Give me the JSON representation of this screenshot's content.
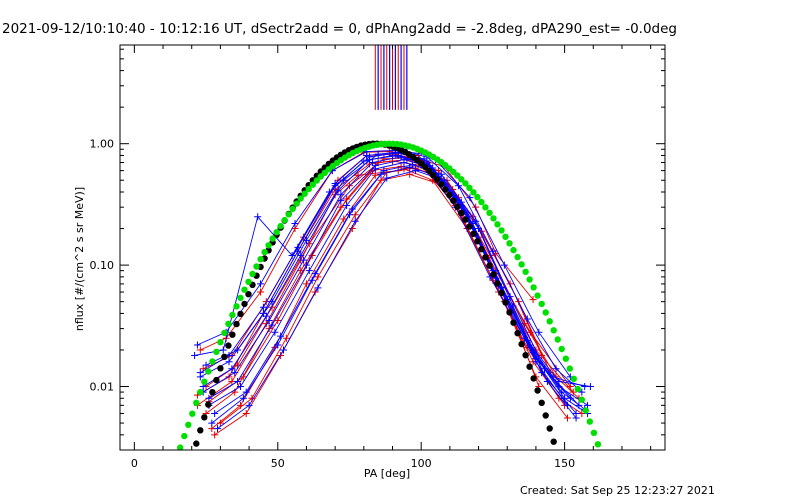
{
  "chart_data": {
    "type": "line",
    "title": "2021-09-12/10:10:40 - 10:12:16 UT, dSectr2add = 0, dPhAng2add = -2.8deg, dPA290_est= -0.0deg",
    "xlabel": "PA [deg]",
    "ylabel": "nflux [#/(cm^2 s sr MeV)]",
    "xlim": [
      -5,
      185
    ],
    "ylim": [
      0.003,
      6.5
    ],
    "yscale": "log",
    "xticks": [
      0,
      50,
      100,
      150
    ],
    "xtick_labels": [
      "0",
      "50",
      "100",
      "150"
    ],
    "yticks": [
      0.01,
      0.1,
      1.0
    ],
    "ytick_labels": [
      "0.01",
      "0.10",
      "1.00"
    ],
    "grid": false,
    "legend": "none",
    "colors": {
      "red_traces": "#e00000",
      "blue_traces": "#0000ff",
      "fit_black": "#000000",
      "fit_green": "#00e000"
    },
    "series": [
      {
        "color": "red",
        "x": [
          22,
          33,
          45,
          57,
          70,
          82,
          90,
          100,
          112,
          125,
          137,
          148,
          156
        ],
        "y": [
          0.0085,
          0.012,
          0.04,
          0.13,
          0.42,
          0.68,
          0.72,
          0.66,
          0.31,
          0.075,
          0.021,
          0.008,
          0.006
        ]
      },
      {
        "color": "red",
        "x": [
          25,
          35,
          47,
          58,
          72,
          83,
          93,
          103,
          114,
          127,
          139,
          150
        ],
        "y": [
          0.006,
          0.009,
          0.03,
          0.09,
          0.3,
          0.6,
          0.65,
          0.58,
          0.26,
          0.06,
          0.016,
          0.007
        ]
      },
      {
        "color": "red",
        "x": [
          24,
          34,
          46,
          59,
          71,
          81,
          91,
          101,
          113,
          126,
          138,
          152
        ],
        "y": [
          0.014,
          0.018,
          0.05,
          0.17,
          0.5,
          0.8,
          0.82,
          0.72,
          0.36,
          0.09,
          0.028,
          0.01
        ]
      },
      {
        "color": "red",
        "x": [
          27,
          37,
          49,
          60,
          73,
          84,
          94,
          104,
          116,
          129,
          140,
          151
        ],
        "y": [
          0.0045,
          0.007,
          0.021,
          0.07,
          0.24,
          0.55,
          0.62,
          0.5,
          0.2,
          0.05,
          0.012,
          0.0055
        ]
      },
      {
        "color": "red",
        "x": [
          23,
          32,
          44,
          56,
          69,
          80,
          89,
          99,
          111,
          124,
          136,
          147,
          155
        ],
        "y": [
          0.02,
          0.025,
          0.06,
          0.2,
          0.6,
          0.85,
          0.86,
          0.8,
          0.42,
          0.12,
          0.033,
          0.012,
          0.008
        ]
      },
      {
        "color": "red",
        "x": [
          26,
          38,
          50,
          62,
          74,
          85,
          95,
          106,
          118,
          131,
          142
        ],
        "y": [
          0.0075,
          0.012,
          0.035,
          0.12,
          0.35,
          0.7,
          0.74,
          0.6,
          0.25,
          0.07,
          0.018
        ]
      },
      {
        "color": "red",
        "x": [
          28,
          39,
          51,
          63,
          76,
          86,
          96,
          107,
          120,
          131,
          141
        ],
        "y": [
          0.004,
          0.006,
          0.018,
          0.06,
          0.2,
          0.5,
          0.56,
          0.46,
          0.17,
          0.042,
          0.01
        ]
      },
      {
        "color": "red",
        "x": [
          25,
          36,
          48,
          61,
          75,
          87,
          97,
          108,
          119,
          126,
          139
        ],
        "y": [
          0.01,
          0.015,
          0.045,
          0.15,
          0.45,
          0.75,
          0.77,
          0.65,
          0.3,
          0.125,
          0.052
        ]
      },
      {
        "color": "red",
        "x": [
          30,
          41,
          53,
          64,
          77,
          88,
          98,
          109,
          121,
          134,
          145
        ],
        "y": [
          0.005,
          0.008,
          0.025,
          0.08,
          0.26,
          0.58,
          0.63,
          0.5,
          0.19,
          0.05,
          0.013
        ]
      },
      {
        "color": "red",
        "x": [
          22,
          34,
          46,
          58,
          70,
          78,
          92,
          102,
          115,
          128,
          140,
          153
        ],
        "y": [
          0.007,
          0.011,
          0.033,
          0.11,
          0.38,
          0.55,
          0.6,
          0.7,
          0.28,
          0.066,
          0.02,
          0.009
        ]
      },
      {
        "color": "blue",
        "x": [
          21,
          31,
          43,
          55,
          68,
          80,
          90,
          100,
          112,
          124,
          136,
          146,
          157
        ],
        "y": [
          0.018,
          0.02,
          0.25,
          0.12,
          0.4,
          0.72,
          0.8,
          0.7,
          0.3,
          0.08,
          0.025,
          0.012,
          0.01
        ]
      },
      {
        "color": "blue",
        "x": [
          23,
          33,
          45,
          57,
          70,
          82,
          92,
          102,
          114,
          126,
          138,
          148,
          158
        ],
        "y": [
          0.012,
          0.016,
          0.04,
          0.13,
          0.45,
          0.78,
          0.84,
          0.72,
          0.33,
          0.085,
          0.022,
          0.01,
          0.007
        ]
      },
      {
        "color": "blue",
        "x": [
          24,
          35,
          47,
          59,
          72,
          83,
          93,
          103,
          115,
          127,
          139,
          150,
          158
        ],
        "y": [
          0.009,
          0.013,
          0.035,
          0.11,
          0.38,
          0.7,
          0.78,
          0.66,
          0.29,
          0.07,
          0.019,
          0.008,
          0.006
        ]
      },
      {
        "color": "blue",
        "x": [
          26,
          37,
          49,
          61,
          74,
          84,
          94,
          104,
          116,
          128,
          140,
          151
        ],
        "y": [
          0.007,
          0.01,
          0.028,
          0.09,
          0.31,
          0.62,
          0.7,
          0.6,
          0.25,
          0.06,
          0.016,
          0.007
        ]
      },
      {
        "color": "blue",
        "x": [
          25,
          36,
          48,
          60,
          73,
          85,
          95,
          105,
          117,
          129,
          141,
          152
        ],
        "y": [
          0.015,
          0.02,
          0.05,
          0.16,
          0.5,
          0.82,
          0.86,
          0.74,
          0.36,
          0.1,
          0.028,
          0.012
        ]
      },
      {
        "color": "blue",
        "x": [
          27,
          38,
          50,
          62,
          75,
          86,
          96,
          106,
          118,
          130,
          142,
          154
        ],
        "y": [
          0.005,
          0.008,
          0.022,
          0.075,
          0.26,
          0.56,
          0.64,
          0.54,
          0.22,
          0.052,
          0.013,
          0.006
        ]
      },
      {
        "color": "blue",
        "x": [
          22,
          32,
          44,
          56,
          69,
          81,
          91,
          101,
          113,
          125,
          137,
          147,
          156
        ],
        "y": [
          0.022,
          0.028,
          0.07,
          0.22,
          0.6,
          0.86,
          0.88,
          0.82,
          0.45,
          0.13,
          0.036,
          0.014,
          0.009
        ]
      },
      {
        "color": "blue",
        "x": [
          28,
          39,
          51,
          63,
          76,
          87,
          97,
          107,
          119,
          131,
          143,
          155
        ],
        "y": [
          0.006,
          0.009,
          0.026,
          0.085,
          0.29,
          0.6,
          0.67,
          0.56,
          0.23,
          0.055,
          0.014,
          0.007
        ]
      },
      {
        "color": "blue",
        "x": [
          24,
          34,
          46,
          58,
          71,
          82,
          92,
          102,
          114,
          126,
          138,
          149,
          157
        ],
        "y": [
          0.01,
          0.014,
          0.038,
          0.12,
          0.41,
          0.74,
          0.8,
          0.69,
          0.31,
          0.078,
          0.021,
          0.009,
          0.0065
        ]
      },
      {
        "color": "blue",
        "x": [
          29,
          40,
          52,
          64,
          77,
          88,
          98,
          108,
          120,
          132,
          144,
          154
        ],
        "y": [
          0.0045,
          0.007,
          0.02,
          0.065,
          0.23,
          0.52,
          0.6,
          0.5,
          0.2,
          0.046,
          0.011,
          0.0055
        ]
      },
      {
        "color": "blue",
        "x": [
          23,
          33,
          45,
          57,
          70,
          81,
          91,
          101,
          113,
          125,
          137,
          148,
          159
        ],
        "y": [
          0.013,
          0.018,
          0.045,
          0.14,
          0.47,
          0.8,
          0.85,
          0.75,
          0.34,
          0.09,
          0.024,
          0.011,
          0.01
        ]
      },
      {
        "color": "blue",
        "x": [
          26,
          36,
          48,
          60,
          72,
          84,
          94,
          104,
          116,
          128,
          140,
          152
        ],
        "y": [
          0.008,
          0.011,
          0.032,
          0.1,
          0.34,
          0.66,
          0.74,
          0.63,
          0.27,
          0.065,
          0.017,
          0.008
        ]
      }
    ],
    "fits": [
      {
        "name": "",
        "color": "black",
        "center": 84,
        "sigma": 18.5,
        "peak": 1.0
      },
      {
        "name": "",
        "color": "green",
        "center": 89,
        "sigma": 21.5,
        "peak": 1.0
      }
    ],
    "top_markers": {
      "red_x": [
        84,
        86,
        88,
        90,
        92,
        94
      ],
      "blue_x": [
        85,
        87,
        89,
        91,
        93,
        95
      ],
      "y_from": 1.9,
      "y_to": 6.5
    }
  },
  "footer": {
    "created": "Created: Sat Sep 25 12:23:27 2021"
  }
}
